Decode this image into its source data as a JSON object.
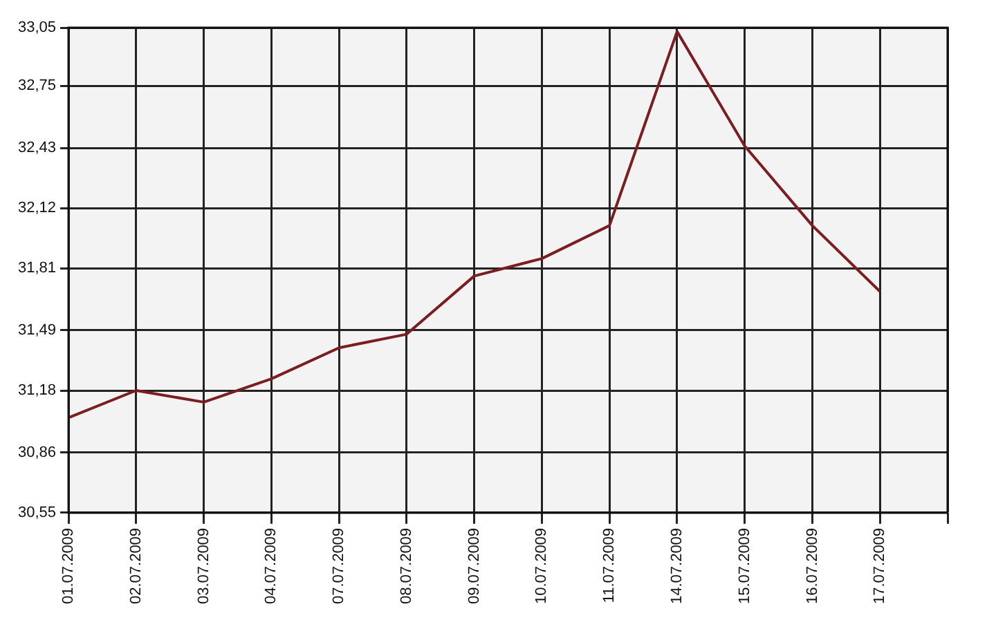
{
  "chart_data": {
    "type": "line",
    "categories": [
      "01.07.2009",
      "02.07.2009",
      "03.07.2009",
      "04.07.2009",
      "07.07.2009",
      "08.07.2009",
      "09.07.2009",
      "10.07.2009",
      "11.07.2009",
      "14.07.2009",
      "15.07.2009",
      "16.07.2009",
      "17.07.2009",
      null
    ],
    "series": [
      {
        "color": "#7a1e22",
        "values": [
          31.04,
          31.18,
          31.12,
          31.24,
          31.4,
          31.47,
          31.77,
          31.86,
          32.03,
          33.03,
          32.44,
          32.03,
          31.69,
          null
        ]
      }
    ],
    "ylim": [
      30.55,
      33.05
    ],
    "yticks": [
      {
        "value": 30.55,
        "label": "30,55"
      },
      {
        "value": 30.86,
        "label": "30,86"
      },
      {
        "value": 31.18,
        "label": "31,18"
      },
      {
        "value": 31.49,
        "label": "31,49"
      },
      {
        "value": 31.81,
        "label": "31,81"
      },
      {
        "value": 32.12,
        "label": "32,12"
      },
      {
        "value": 32.43,
        "label": "32,43"
      },
      {
        "value": 32.75,
        "label": "32,75"
      },
      {
        "value": 33.05,
        "label": "33,05"
      }
    ],
    "grid": true,
    "legend": false,
    "marker": "none",
    "line_style": "solid"
  }
}
